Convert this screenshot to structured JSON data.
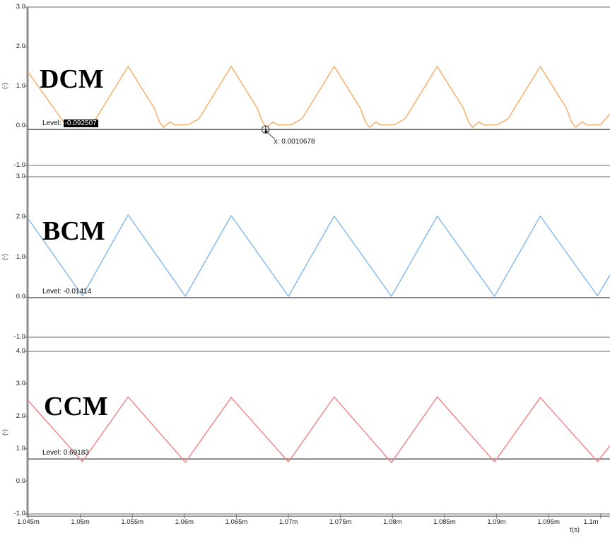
{
  "window": {
    "x_axis_label": "t(s)"
  },
  "colors": {
    "dcm_trace": "#f8ab63",
    "bcm_trace": "#82b7ea",
    "ccm_trace": "#f28080",
    "level_line": "#4a4a4a",
    "frame": "#9a9a9a",
    "axis": "#8c8c8c",
    "tick": "#777777",
    "highlight_bg": "#000000",
    "highlight_fg": "#ffffff"
  },
  "chart_data": {
    "type": "line",
    "x_unit": "ms",
    "xlabel": "t(s)",
    "x_range": [
      1.045,
      1.1009
    ],
    "grid": false,
    "legend": "none",
    "x_ticks": [
      {
        "t": 1.045,
        "label": "1.045m"
      },
      {
        "t": 1.05,
        "label": "1.05m"
      },
      {
        "t": 1.055,
        "label": "1.055m"
      },
      {
        "t": 1.06,
        "label": "1.06m"
      },
      {
        "t": 1.065,
        "label": "1.065m"
      },
      {
        "t": 1.07,
        "label": "1.07m"
      },
      {
        "t": 1.075,
        "label": "1.075m"
      },
      {
        "t": 1.08,
        "label": "1.08m"
      },
      {
        "t": 1.085,
        "label": "1.085m"
      },
      {
        "t": 1.09,
        "label": "1.09m"
      },
      {
        "t": 1.095,
        "label": "1.095m"
      },
      {
        "t": 1.1,
        "label": "1.1m"
      }
    ],
    "panels": [
      {
        "mode_label": "DCM",
        "ylabel": "(-)",
        "ylim": [
          -1.0,
          3.0
        ],
        "y_ticks": [
          {
            "v": 3,
            "label": "3.0"
          },
          {
            "v": 2,
            "label": "2.0"
          },
          {
            "v": 1,
            "label": "1.0"
          },
          {
            "v": 0,
            "label": "0.0"
          },
          {
            "v": -1,
            "label": "-1.0"
          }
        ],
        "level": {
          "prefix": "Level:",
          "value": "-0.092507",
          "numeric": -0.0925,
          "highlighted": true
        },
        "cursor": {
          "label": "x: 0.0010678",
          "t_ms": 1.0678
        },
        "series": {
          "name": "DCM",
          "color": "#f8ab63",
          "points": [
            [
              1.045,
              1.35
            ],
            [
              1.0485,
              0.06
            ],
            [
              1.0489,
              -0.03
            ],
            [
              1.0495,
              0.09
            ],
            [
              1.05,
              0.02
            ],
            [
              1.0505,
              0.03
            ],
            [
              1.0515,
              0.18
            ],
            [
              1.0546,
              1.5
            ],
            [
              1.0571,
              0.45
            ],
            [
              1.0576,
              0.1
            ],
            [
              1.058,
              -0.04
            ],
            [
              1.0586,
              0.1
            ],
            [
              1.0591,
              0.02
            ],
            [
              1.0604,
              0.03
            ],
            [
              1.0614,
              0.18
            ],
            [
              1.0645,
              1.5
            ],
            [
              1.067,
              0.45
            ],
            [
              1.0675,
              0.1
            ],
            [
              1.0679,
              -0.05
            ],
            [
              1.0685,
              0.1
            ],
            [
              1.069,
              0.02
            ],
            [
              1.0703,
              0.03
            ],
            [
              1.0713,
              0.18
            ],
            [
              1.0744,
              1.5
            ],
            [
              1.0769,
              0.45
            ],
            [
              1.0774,
              0.1
            ],
            [
              1.0778,
              -0.04
            ],
            [
              1.0784,
              0.1
            ],
            [
              1.0789,
              0.02
            ],
            [
              1.0802,
              0.03
            ],
            [
              1.0812,
              0.18
            ],
            [
              1.0843,
              1.5
            ],
            [
              1.0868,
              0.45
            ],
            [
              1.0873,
              0.1
            ],
            [
              1.0877,
              -0.04
            ],
            [
              1.0883,
              0.1
            ],
            [
              1.0888,
              0.02
            ],
            [
              1.0901,
              0.03
            ],
            [
              1.0911,
              0.18
            ],
            [
              1.0942,
              1.5
            ],
            [
              1.0967,
              0.45
            ],
            [
              1.0972,
              0.1
            ],
            [
              1.0976,
              -0.04
            ],
            [
              1.0982,
              0.1
            ],
            [
              1.0987,
              0.02
            ],
            [
              1.1,
              0.03
            ],
            [
              1.1009,
              0.3
            ]
          ]
        }
      },
      {
        "mode_label": "BCM",
        "ylabel": "(-)",
        "ylim": [
          -1.0,
          3.0
        ],
        "y_ticks": [
          {
            "v": 3,
            "label": "3.0"
          },
          {
            "v": 2,
            "label": "2.0"
          },
          {
            "v": 1,
            "label": "1.0"
          },
          {
            "v": 0,
            "label": "0.0"
          },
          {
            "v": -1,
            "label": "-1.0"
          }
        ],
        "level": {
          "prefix": "Level:",
          "value": "-0.01414",
          "numeric": -0.01414,
          "highlighted": false
        },
        "series": {
          "name": "BCM",
          "color": "#82b7ea",
          "points": [
            [
              1.045,
              1.95
            ],
            [
              1.0502,
              0.03
            ],
            [
              1.0546,
              2.05
            ],
            [
              1.0601,
              0.02
            ],
            [
              1.0645,
              2.03
            ],
            [
              1.07,
              0.02
            ],
            [
              1.0744,
              2.02
            ],
            [
              1.0799,
              0.02
            ],
            [
              1.0843,
              2.02
            ],
            [
              1.0898,
              0.02
            ],
            [
              1.0942,
              2.02
            ],
            [
              1.0997,
              0.03
            ],
            [
              1.1009,
              0.55
            ]
          ]
        }
      },
      {
        "mode_label": "CCM",
        "ylabel": "(-)",
        "ylim": [
          -1.0,
          4.0
        ],
        "y_ticks": [
          {
            "v": 4,
            "label": "4.0"
          },
          {
            "v": 3,
            "label": "3.0"
          },
          {
            "v": 2,
            "label": "2.0"
          },
          {
            "v": 1,
            "label": "1.0"
          },
          {
            "v": 0,
            "label": "0.0"
          },
          {
            "v": -1,
            "label": "-1.0"
          }
        ],
        "level": {
          "prefix": "Level:",
          "value": "0.69183",
          "numeric": 0.69183,
          "highlighted": false
        },
        "series": {
          "name": "CCM",
          "color": "#f28080",
          "points": [
            [
              1.045,
              2.48
            ],
            [
              1.0502,
              0.61
            ],
            [
              1.0546,
              2.6
            ],
            [
              1.0601,
              0.59
            ],
            [
              1.0645,
              2.58
            ],
            [
              1.07,
              0.6
            ],
            [
              1.0744,
              2.6
            ],
            [
              1.0799,
              0.58
            ],
            [
              1.0843,
              2.6
            ],
            [
              1.0898,
              0.6
            ],
            [
              1.0942,
              2.58
            ],
            [
              1.0997,
              0.61
            ],
            [
              1.1009,
              1.1
            ]
          ]
        }
      }
    ]
  }
}
